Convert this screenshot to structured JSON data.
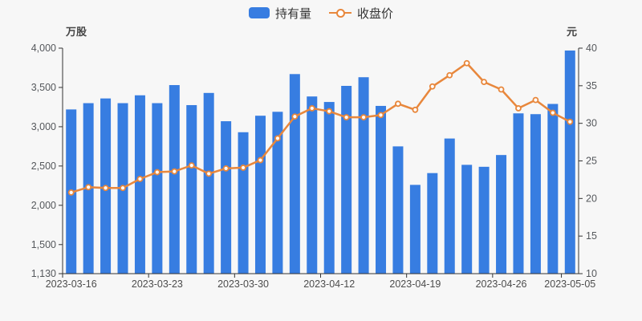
{
  "legend": {
    "items": [
      {
        "label": "持有量",
        "series_type": "bar"
      },
      {
        "label": "收盘价",
        "series_type": "line"
      }
    ]
  },
  "colors": {
    "background": "#f7f7f7",
    "bar": "#377de1",
    "line": "#e8873c",
    "marker_fill": "#ffffff",
    "axis_line": "#333333",
    "y_tick_text": "#55585c",
    "x_tick_text": "#4d4d4d"
  },
  "chart_data": {
    "type": "combo",
    "title": "",
    "grid": false,
    "legend_position": "top-center",
    "n_points": 30,
    "x_labels": [
      "2023-03-16",
      "2023-03-23",
      "2023-03-30",
      "2023-04-12",
      "2023-04-19",
      "2023-04-26",
      "2023-05-05"
    ],
    "x_label_indices": [
      0,
      5,
      10,
      15,
      20,
      25,
      29
    ],
    "series": [
      {
        "name": "持有量",
        "type": "bar",
        "axis": "left",
        "unit": "万股",
        "values": [
          3220,
          3300,
          3360,
          3300,
          3400,
          3300,
          3530,
          3275,
          3430,
          3070,
          2930,
          3140,
          3190,
          3670,
          3385,
          3315,
          3520,
          3630,
          3265,
          2750,
          2260,
          2410,
          2850,
          2515,
          2490,
          2640,
          3170,
          3160,
          3290,
          3970
        ]
      },
      {
        "name": "收盘价",
        "type": "line",
        "axis": "right",
        "unit": "元",
        "values": [
          20.8,
          21.5,
          21.4,
          21.4,
          22.6,
          23.5,
          23.6,
          24.4,
          23.3,
          24.0,
          24.1,
          25.1,
          28.0,
          30.9,
          32.0,
          31.6,
          30.8,
          30.8,
          31.1,
          32.6,
          31.8,
          34.9,
          36.4,
          38.0,
          35.5,
          34.5,
          32.0,
          33.1,
          31.4,
          30.2
        ]
      }
    ],
    "y_left": {
      "name": "万股",
      "min": 1130,
      "max": 4000,
      "tick_labels": [
        "4,000",
        "3,500",
        "3,000",
        "2,500",
        "2,000",
        "1,500",
        "1,130"
      ],
      "tick_values": [
        4000,
        3500,
        3000,
        2500,
        2000,
        1500,
        1130
      ]
    },
    "y_right": {
      "name": "元",
      "min": 10,
      "max": 40,
      "tick_labels": [
        "40",
        "35",
        "30",
        "25",
        "20",
        "15",
        "10"
      ],
      "tick_values": [
        40,
        35,
        30,
        25,
        20,
        15,
        10
      ]
    }
  }
}
